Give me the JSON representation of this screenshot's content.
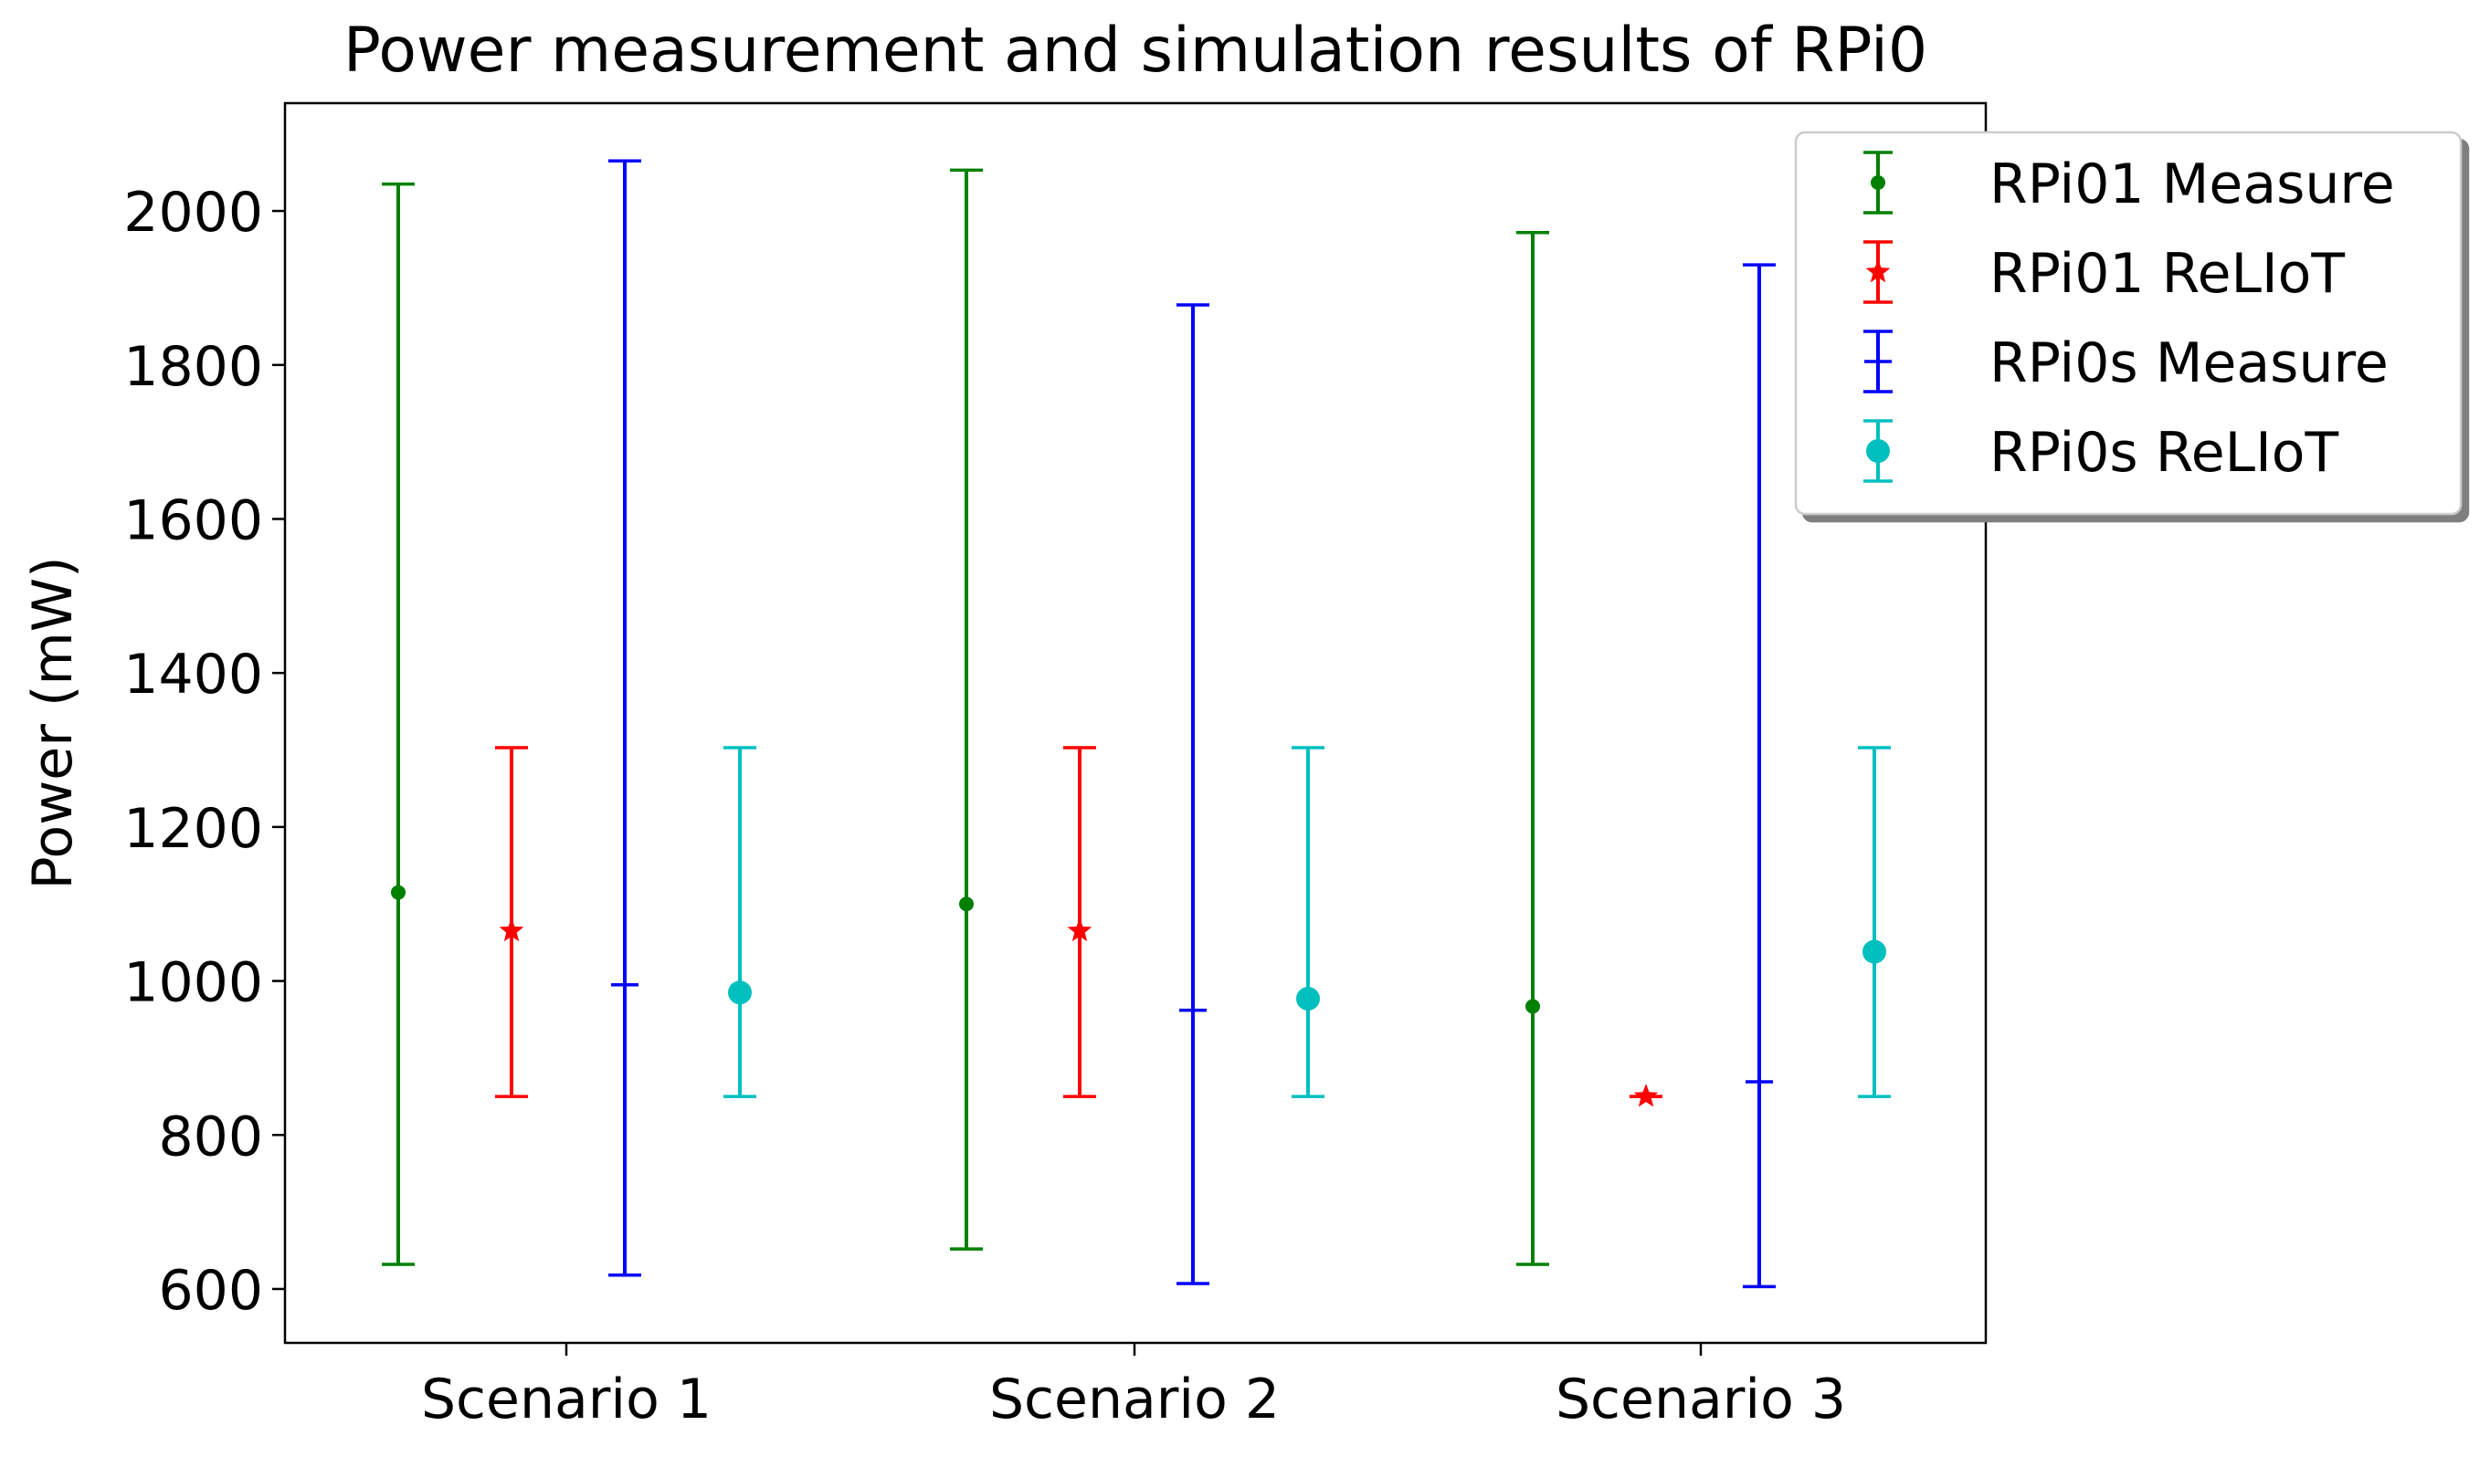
{
  "chart_data": {
    "type": "errorbar",
    "title": "Power measurement and simulation results of RPi0",
    "xlabel": "",
    "ylabel": "Power (mW)",
    "categories": [
      "Scenario 1",
      "Scenario 2",
      "Scenario 3"
    ],
    "ylim": [
      530,
      2140
    ],
    "yticks": [
      600,
      800,
      1000,
      1200,
      1400,
      1600,
      1800,
      2000
    ],
    "grid": false,
    "legend_position": "upper-right, outside plot",
    "series": [
      {
        "name": "RPi01 Measure",
        "color": "#008000",
        "marker": "small-dot",
        "values": [
          1115,
          1100,
          967
        ],
        "lower": [
          632,
          652,
          632
        ],
        "upper": [
          2035,
          2053,
          1972
        ]
      },
      {
        "name": "RPi01 ReLIoT",
        "color": "#ff0000",
        "marker": "star",
        "values": [
          1065,
          1065,
          850
        ],
        "lower": [
          850,
          850,
          850
        ],
        "upper": [
          1303,
          1303,
          850
        ]
      },
      {
        "name": "RPi0s Measure",
        "color": "#0000ff",
        "marker": "tick",
        "values": [
          995,
          962,
          869
        ],
        "lower": [
          618,
          607,
          603
        ],
        "upper": [
          2065,
          1878,
          1930
        ]
      },
      {
        "name": "RPi0s ReLIoT",
        "color": "#00bfbf",
        "marker": "large-dot",
        "values": [
          985,
          977,
          1038
        ],
        "lower": [
          850,
          850,
          850
        ],
        "upper": [
          1303,
          1303,
          1303
        ]
      }
    ]
  }
}
